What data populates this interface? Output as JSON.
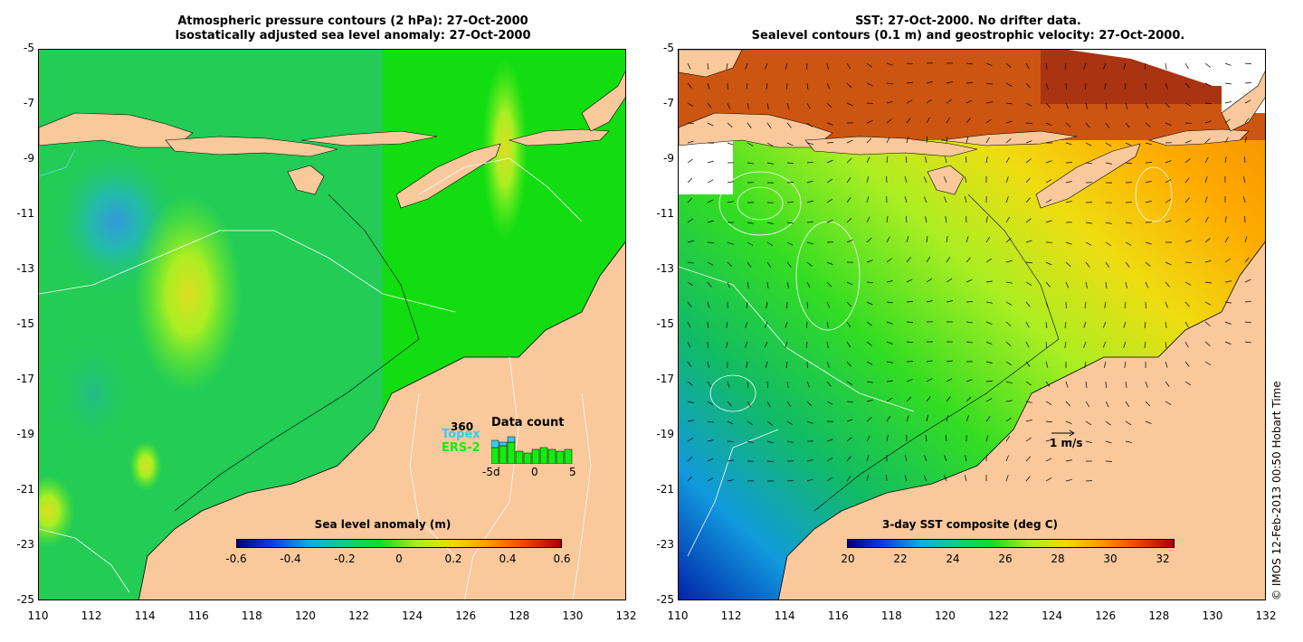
{
  "left_panel": {
    "title_line1": "Atmospheric pressure contours (2 hPa): 27-Oct-2000",
    "title_line2": "Isostatically adjusted sea level anomaly: 27-Oct-2000",
    "y_ticks": [
      "-5",
      "-7",
      "-9",
      "-11",
      "-13",
      "-15",
      "-17",
      "-19",
      "-21",
      "-23",
      "-25"
    ],
    "x_ticks": [
      "110",
      "112",
      "114",
      "116",
      "118",
      "120",
      "122",
      "124",
      "126",
      "128",
      "130",
      "132"
    ],
    "colorbar_title": "Sea level anomaly (m)",
    "colorbar_ticks": [
      "-0.6",
      "-0.4",
      "-0.2",
      "0",
      "0.2",
      "0.4",
      "0.6"
    ],
    "inset": {
      "title": "Data count",
      "max_label": "360",
      "topex_label": "Topex",
      "ers_label": "ERS-2",
      "x_labels": [
        "-5d",
        "0",
        "5"
      ],
      "topex_bars": [
        0.65,
        0.6,
        0.75,
        0.0,
        0.0,
        0.0,
        0.0,
        0.0,
        0.0,
        0.0
      ],
      "ers_bars": [
        0.45,
        0.5,
        0.6,
        0.35,
        0.3,
        0.4,
        0.45,
        0.4,
        0.35,
        0.4
      ]
    }
  },
  "right_panel": {
    "title_line1": "SST: 27-Oct-2000. No drifter data.",
    "title_line2": "Sealevel contours (0.1 m) and geostrophic velocity: 27-Oct-2000.",
    "y_ticks": [
      "-5",
      "-7",
      "-9",
      "-11",
      "-13",
      "-15",
      "-17",
      "-19",
      "-21",
      "-23",
      "-25"
    ],
    "x_ticks": [
      "110",
      "112",
      "114",
      "116",
      "118",
      "120",
      "122",
      "124",
      "126",
      "128",
      "130",
      "132"
    ],
    "colorbar_title": "3-day SST composite (deg C)",
    "colorbar_ticks": [
      "20",
      "22",
      "24",
      "26",
      "28",
      "30",
      "32"
    ],
    "velocity_scale_label": "1 m/s"
  },
  "copyright": "© IMOS 12-Feb-2013 00:50 Hobart Time",
  "colors": {
    "land": "#f9c89b",
    "ocean_green": "#22dd22",
    "ocean_bright": "#00ee00"
  }
}
